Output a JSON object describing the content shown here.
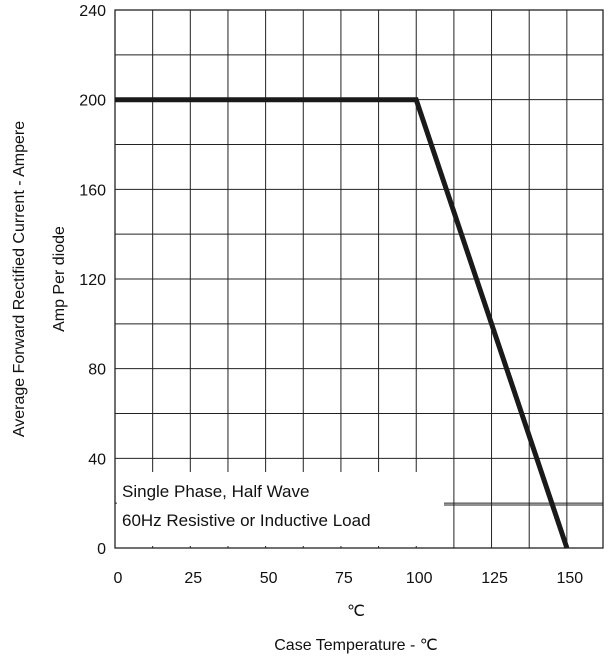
{
  "chart_data": {
    "type": "line",
    "title": "",
    "xlabel": "Case Temperature  - ℃",
    "xunit": "℃",
    "ylabel_line1": "Average Forward Rectified Current - Ampere",
    "ylabel_line2": "Amp   Per diode",
    "xlim": [
      0,
      162
    ],
    "ylim": [
      0,
      240
    ],
    "x_ticks": [
      0,
      25,
      50,
      75,
      100,
      125,
      150
    ],
    "y_ticks": [
      0,
      40,
      80,
      120,
      160,
      200,
      240
    ],
    "grid": true,
    "annotations": [
      "Single Phase, Half Wave",
      "60Hz Resistive or Inductive Load"
    ],
    "series": [
      {
        "x": [
          0,
          100,
          150
        ],
        "y": [
          200,
          200,
          0
        ]
      }
    ],
    "colors": {
      "line": "#1a1a1a",
      "grid": "#222222",
      "background": "#ffffff"
    }
  }
}
